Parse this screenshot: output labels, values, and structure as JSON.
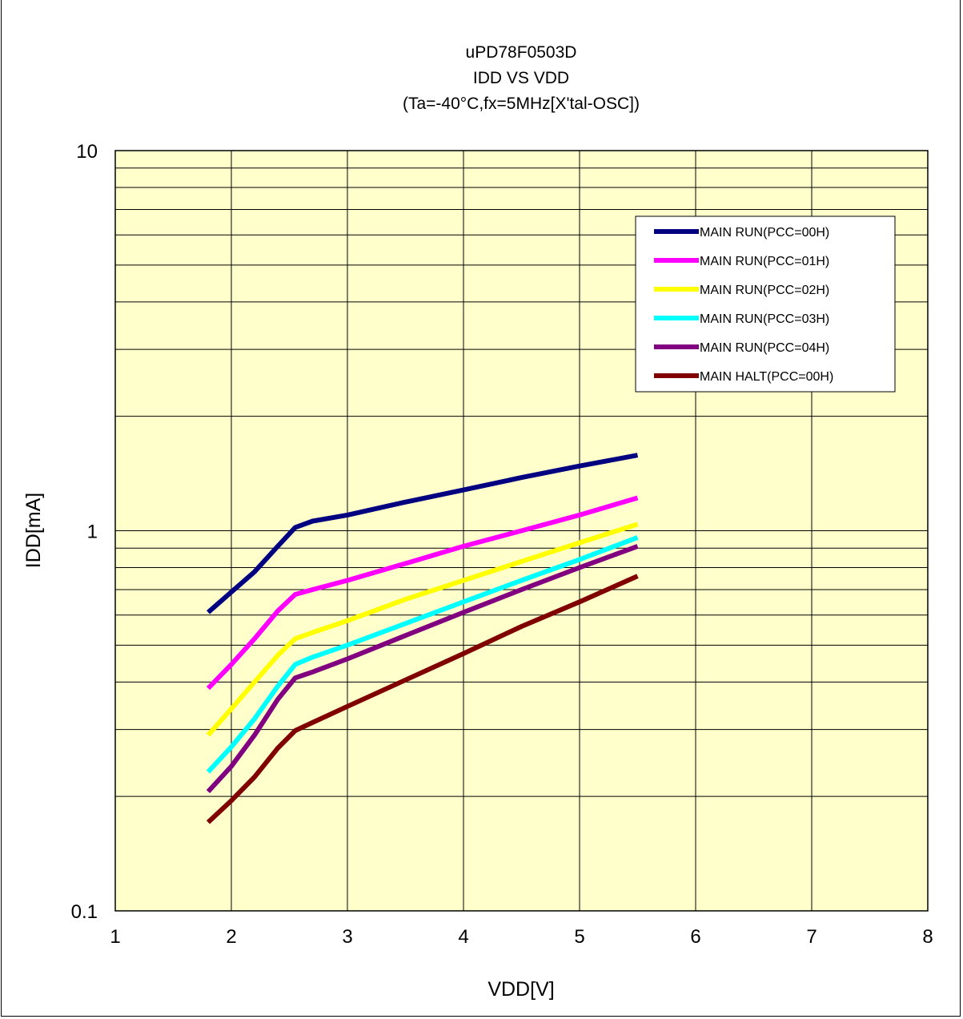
{
  "chart_data": {
    "type": "line",
    "title_lines": [
      "uPD78F0503D",
      "IDD VS VDD",
      "(Ta=-40°C,fx=5MHz[X'tal-OSC])"
    ],
    "xlabel": "VDD[V]",
    "ylabel": "IDD[mA]",
    "xlim": [
      1,
      8
    ],
    "ylim": [
      0.1,
      10
    ],
    "yscale": "log",
    "x_ticks": [
      "1",
      "2",
      "3",
      "4",
      "5",
      "6",
      "7",
      "8"
    ],
    "y_ticks": [
      "0.1",
      "1",
      "10"
    ],
    "grid": true,
    "plot_background": "#FFFFCC",
    "legend_position": "top-right",
    "series": [
      {
        "name": "MAIN RUN(PCC=00H)",
        "color": "#000080",
        "x": [
          1.8,
          2.0,
          2.2,
          2.4,
          2.55,
          2.7,
          3.0,
          3.5,
          4.0,
          4.5,
          5.0,
          5.5
        ],
        "y": [
          0.61,
          0.69,
          0.78,
          0.91,
          1.02,
          1.06,
          1.1,
          1.19,
          1.28,
          1.38,
          1.48,
          1.58
        ]
      },
      {
        "name": "MAIN RUN(PCC=01H)",
        "color": "#FF00FF",
        "x": [
          1.8,
          2.0,
          2.2,
          2.4,
          2.55,
          2.7,
          3.0,
          3.5,
          4.0,
          4.5,
          5.0,
          5.5
        ],
        "y": [
          0.385,
          0.445,
          0.52,
          0.615,
          0.68,
          0.7,
          0.74,
          0.82,
          0.91,
          1.0,
          1.1,
          1.22
        ]
      },
      {
        "name": "MAIN RUN(PCC=02H)",
        "color": "#FFFF00",
        "x": [
          1.8,
          2.0,
          2.2,
          2.4,
          2.55,
          2.7,
          3.0,
          3.5,
          4.0,
          4.5,
          5.0,
          5.5
        ],
        "y": [
          0.29,
          0.34,
          0.4,
          0.47,
          0.52,
          0.54,
          0.58,
          0.66,
          0.74,
          0.83,
          0.93,
          1.04
        ]
      },
      {
        "name": "MAIN RUN(PCC=03H)",
        "color": "#00FFFF",
        "x": [
          1.8,
          2.0,
          2.2,
          2.4,
          2.55,
          2.7,
          3.0,
          3.5,
          4.0,
          4.5,
          5.0,
          5.5
        ],
        "y": [
          0.232,
          0.27,
          0.32,
          0.39,
          0.445,
          0.465,
          0.5,
          0.57,
          0.65,
          0.74,
          0.84,
          0.96
        ]
      },
      {
        "name": "MAIN RUN(PCC=04H)",
        "color": "#800080",
        "x": [
          1.8,
          2.0,
          2.2,
          2.4,
          2.55,
          2.7,
          3.0,
          3.5,
          4.0,
          4.5,
          5.0,
          5.5
        ],
        "y": [
          0.206,
          0.24,
          0.29,
          0.36,
          0.41,
          0.425,
          0.46,
          0.53,
          0.61,
          0.7,
          0.8,
          0.91
        ]
      },
      {
        "name": "MAIN HALT(PCC=00H)",
        "color": "#800000",
        "x": [
          1.8,
          2.0,
          2.2,
          2.4,
          2.55,
          2.7,
          3.0,
          3.5,
          4.0,
          4.5,
          5.0,
          5.5
        ],
        "y": [
          0.171,
          0.195,
          0.225,
          0.268,
          0.298,
          0.313,
          0.345,
          0.405,
          0.475,
          0.56,
          0.65,
          0.76
        ]
      }
    ]
  }
}
